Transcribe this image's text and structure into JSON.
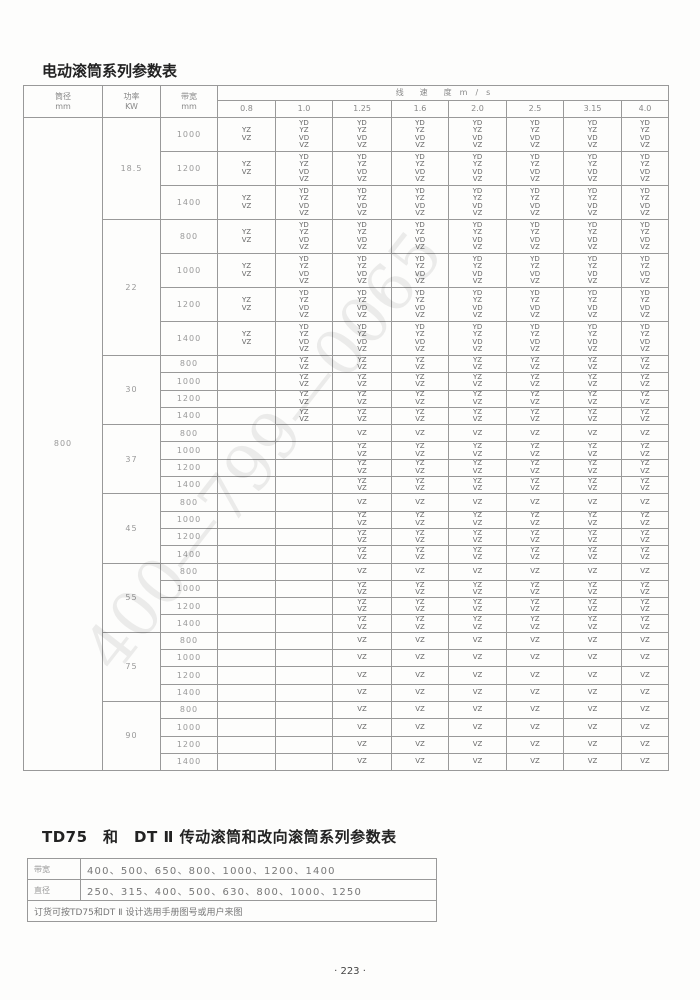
{
  "title": "电动滚筒系列参数表",
  "header": {
    "diameter": "筒径",
    "diameter_unit": "mm",
    "power": "功率",
    "power_unit": "KW",
    "width": "带宽",
    "width_unit": "mm",
    "speed": "线　　速　　度　m　/　s",
    "speeds": [
      "0.8",
      "1.0",
      "1.25",
      "1.6",
      "2.0",
      "2.5",
      "3.15",
      "4.0"
    ]
  },
  "diameter_value": "800",
  "groups": [
    {
      "power": "18.5",
      "rows": [
        {
          "width": "1000",
          "cells": [
            "YZ VZ",
            "YD YZ VD VZ",
            "YD YZ VD VZ",
            "YD YZ VD VZ",
            "YD YZ VD VZ",
            "YD YZ VD VZ",
            "YD YZ VD VZ",
            "YD YZ VD VZ"
          ]
        },
        {
          "width": "1200",
          "cells": [
            "YZ VZ",
            "YD YZ VD VZ",
            "YD YZ VD VZ",
            "YD YZ VD VZ",
            "YD YZ VD VZ",
            "YD YZ VD VZ",
            "YD YZ VD VZ",
            "YD YZ VD VZ"
          ]
        },
        {
          "width": "1400",
          "cells": [
            "YZ VZ",
            "YD YZ VD VZ",
            "YD YZ VD VZ",
            "YD YZ VD VZ",
            "YD YZ VD VZ",
            "YD YZ VD VZ",
            "YD YZ VD VZ",
            "YD YZ VD VZ"
          ]
        }
      ]
    },
    {
      "power": "22",
      "rows": [
        {
          "width": "800",
          "cells": [
            "YZ VZ",
            "YD YZ VD VZ",
            "YD YZ VD VZ",
            "YD YZ VD VZ",
            "YD YZ VD VZ",
            "YD YZ VD VZ",
            "YD YZ VD VZ",
            "YD YZ VD VZ"
          ]
        },
        {
          "width": "1000",
          "cells": [
            "YZ VZ",
            "YD YZ VD VZ",
            "YD YZ VD VZ",
            "YD YZ VD VZ",
            "YD YZ VD VZ",
            "YD YZ VD VZ",
            "YD YZ VD VZ",
            "YD YZ VD VZ"
          ]
        },
        {
          "width": "1200",
          "cells": [
            "YZ VZ",
            "YD YZ VD VZ",
            "YD YZ VD VZ",
            "YD YZ VD VZ",
            "YD YZ VD VZ",
            "YD YZ VD VZ",
            "YD YZ VD VZ",
            "YD YZ VD VZ"
          ]
        },
        {
          "width": "1400",
          "cells": [
            "YZ VZ",
            "YD YZ VD VZ",
            "YD YZ VD VZ",
            "YD YZ VD VZ",
            "YD YZ VD VZ",
            "YD YZ VD VZ",
            "YD YZ VD VZ",
            "YD YZ VD VZ"
          ]
        }
      ]
    },
    {
      "power": "30",
      "rows": [
        {
          "width": "800",
          "cells": [
            "",
            "YZ VZ",
            "YZ VZ",
            "YZ VZ",
            "YZ VZ",
            "YZ VZ",
            "YZ VZ",
            "YZ VZ"
          ]
        },
        {
          "width": "1000",
          "cells": [
            "",
            "YZ VZ",
            "YZ VZ",
            "YZ VZ",
            "YZ VZ",
            "YZ VZ",
            "YZ VZ",
            "YZ VZ"
          ]
        },
        {
          "width": "1200",
          "cells": [
            "",
            "YZ VZ",
            "YZ VZ",
            "YZ VZ",
            "YZ VZ",
            "YZ VZ",
            "YZ VZ",
            "YZ VZ"
          ]
        },
        {
          "width": "1400",
          "cells": [
            "",
            "YZ VZ",
            "YZ VZ",
            "YZ VZ",
            "YZ VZ",
            "YZ VZ",
            "YZ VZ",
            "YZ VZ"
          ]
        }
      ]
    },
    {
      "power": "37",
      "rows": [
        {
          "width": "800",
          "cells": [
            "",
            "",
            "VZ",
            "VZ",
            "VZ",
            "VZ",
            "VZ",
            "VZ"
          ]
        },
        {
          "width": "1000",
          "cells": [
            "",
            "",
            "YZ VZ",
            "YZ VZ",
            "YZ VZ",
            "YZ VZ",
            "YZ VZ",
            "YZ VZ"
          ]
        },
        {
          "width": "1200",
          "cells": [
            "",
            "",
            "YZ VZ",
            "YZ VZ",
            "YZ VZ",
            "YZ VZ",
            "YZ VZ",
            "YZ VZ"
          ]
        },
        {
          "width": "1400",
          "cells": [
            "",
            "",
            "YZ VZ",
            "YZ VZ",
            "YZ VZ",
            "YZ VZ",
            "YZ VZ",
            "YZ VZ"
          ]
        }
      ]
    },
    {
      "power": "45",
      "rows": [
        {
          "width": "800",
          "cells": [
            "",
            "",
            "VZ",
            "VZ",
            "VZ",
            "VZ",
            "VZ",
            "VZ"
          ]
        },
        {
          "width": "1000",
          "cells": [
            "",
            "",
            "YZ VZ",
            "YZ VZ",
            "YZ VZ",
            "YZ VZ",
            "YZ VZ",
            "YZ VZ"
          ]
        },
        {
          "width": "1200",
          "cells": [
            "",
            "",
            "YZ VZ",
            "YZ VZ",
            "YZ VZ",
            "YZ VZ",
            "YZ VZ",
            "YZ VZ"
          ]
        },
        {
          "width": "1400",
          "cells": [
            "",
            "",
            "YZ VZ",
            "YZ VZ",
            "YZ VZ",
            "YZ VZ",
            "YZ VZ",
            "YZ VZ"
          ]
        }
      ]
    },
    {
      "power": "55",
      "rows": [
        {
          "width": "800",
          "cells": [
            "",
            "",
            "VZ",
            "VZ",
            "VZ",
            "VZ",
            "VZ",
            "VZ"
          ]
        },
        {
          "width": "1000",
          "cells": [
            "",
            "",
            "YZ VZ",
            "YZ VZ",
            "YZ VZ",
            "YZ VZ",
            "YZ VZ",
            "YZ VZ"
          ]
        },
        {
          "width": "1200",
          "cells": [
            "",
            "",
            "YZ VZ",
            "YZ VZ",
            "YZ VZ",
            "YZ VZ",
            "YZ VZ",
            "YZ VZ"
          ]
        },
        {
          "width": "1400",
          "cells": [
            "",
            "",
            "YZ VZ",
            "YZ VZ",
            "YZ VZ",
            "YZ VZ",
            "YZ VZ",
            "YZ VZ"
          ]
        }
      ]
    },
    {
      "power": "75",
      "rows": [
        {
          "width": "800",
          "cells": [
            "",
            "",
            "VZ",
            "VZ",
            "VZ",
            "VZ",
            "VZ",
            "VZ"
          ]
        },
        {
          "width": "1000",
          "cells": [
            "",
            "",
            "VZ",
            "VZ",
            "VZ",
            "VZ",
            "VZ",
            "VZ"
          ]
        },
        {
          "width": "1200",
          "cells": [
            "",
            "",
            "VZ",
            "VZ",
            "VZ",
            "VZ",
            "VZ",
            "VZ"
          ]
        },
        {
          "width": "1400",
          "cells": [
            "",
            "",
            "VZ",
            "VZ",
            "VZ",
            "VZ",
            "VZ",
            "VZ"
          ]
        }
      ]
    },
    {
      "power": "90",
      "rows": [
        {
          "width": "800",
          "cells": [
            "",
            "",
            "VZ",
            "VZ",
            "VZ",
            "VZ",
            "VZ",
            "VZ"
          ]
        },
        {
          "width": "1000",
          "cells": [
            "",
            "",
            "VZ",
            "VZ",
            "VZ",
            "VZ",
            "VZ",
            "VZ"
          ]
        },
        {
          "width": "1200",
          "cells": [
            "",
            "",
            "VZ",
            "VZ",
            "VZ",
            "VZ",
            "VZ",
            "VZ"
          ]
        },
        {
          "width": "1400",
          "cells": [
            "",
            "",
            "VZ",
            "VZ",
            "VZ",
            "VZ",
            "VZ",
            "VZ"
          ]
        }
      ]
    }
  ],
  "section2": {
    "title": "TD75　和　DT Ⅱ 传动滚筒和改向滚筒系列参数表",
    "width_label": "带宽",
    "width_values": "400、500、650、800、1000、1200、1400",
    "diameter_label": "直径",
    "diameter_values": "250、315、400、500、630、800、1000、1250",
    "note": "订货可按TD75和DT Ⅱ 设计选用手册图号或用户来图"
  },
  "page_number": "· 223 ·",
  "watermark": "400—799—0065"
}
